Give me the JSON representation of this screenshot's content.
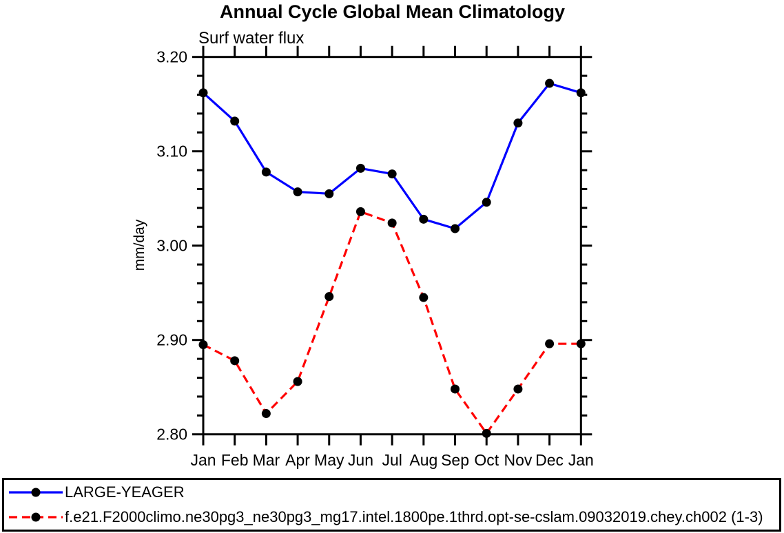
{
  "chart_data": {
    "type": "line",
    "title": "Annual Cycle Global Mean Climatology",
    "subtitle": "Surf water flux",
    "ylabel": "mm/day",
    "x_categories": [
      "Jan",
      "Feb",
      "Mar",
      "Apr",
      "May",
      "Jun",
      "Jul",
      "Aug",
      "Sep",
      "Oct",
      "Nov",
      "Dec",
      "Jan"
    ],
    "ylim": [
      2.8,
      3.2
    ],
    "ytick_labels": [
      "3.20",
      "3.10",
      "3.00",
      "2.90",
      "2.80"
    ],
    "ytick_values": [
      3.2,
      3.1,
      3.0,
      2.9,
      2.8
    ],
    "yminor_step": 0.02,
    "grid": false,
    "legend_position": "bottom",
    "axis_color": "#000000",
    "marker_color": "#000000",
    "series": [
      {
        "name": "LARGE-YEAGER",
        "color": "#0000ff",
        "line_style": "solid",
        "marker": "filled-circle",
        "values": [
          3.162,
          3.132,
          3.078,
          3.057,
          3.055,
          3.082,
          3.076,
          3.028,
          3.018,
          3.046,
          3.13,
          3.172,
          3.162
        ]
      },
      {
        "name": "f.e21.F2000climo.ne30pg3_ne30pg3_mg17.intel.1800pe.1thrd.opt-se-cslam.09032019.chey.ch002 (1-3)",
        "color": "#ff0000",
        "line_style": "dashed",
        "marker": "filled-circle",
        "values": [
          2.895,
          2.878,
          2.822,
          2.856,
          2.946,
          3.036,
          3.024,
          2.945,
          2.848,
          2.801,
          2.848,
          2.896,
          2.896
        ]
      }
    ]
  }
}
